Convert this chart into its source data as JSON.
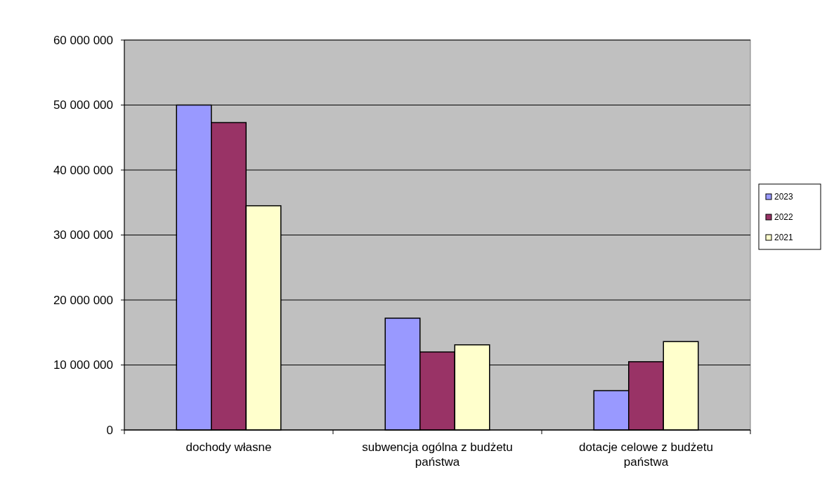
{
  "chart_data": {
    "type": "bar",
    "categories": [
      "dochody własne",
      "subwencja ogólna z budżetu państwa",
      "dotacje celowe z budżetu państwa"
    ],
    "series": [
      {
        "name": "2023",
        "color": "#9999ff",
        "values": [
          50000000,
          17200000,
          6050000
        ]
      },
      {
        "name": "2022",
        "color": "#993366",
        "values": [
          47300000,
          12000000,
          10500000
        ]
      },
      {
        "name": "2021",
        "color": "#ffffcc",
        "values": [
          34500000,
          13100000,
          13600000
        ]
      }
    ],
    "ylim": [
      0,
      60000000
    ],
    "yticks": [
      {
        "value": 0,
        "label": "0"
      },
      {
        "value": 10000000,
        "label": "10 000 000"
      },
      {
        "value": 20000000,
        "label": "20 000 000"
      },
      {
        "value": 30000000,
        "label": "30 000 000"
      },
      {
        "value": 40000000,
        "label": "40 000 000"
      },
      {
        "value": 50000000,
        "label": "50 000 000"
      },
      {
        "value": 60000000,
        "label": "60 000 000"
      }
    ],
    "grid": "y",
    "legend": "right"
  }
}
